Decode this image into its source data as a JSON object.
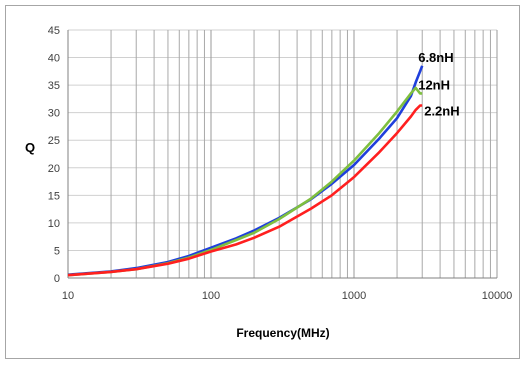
{
  "chart_data": {
    "type": "line",
    "xlabel": "Frequency(MHz)",
    "ylabel": "Q",
    "x_scale": "log",
    "xlim": [
      10,
      10000
    ],
    "ylim": [
      0,
      45
    ],
    "x_ticks": [
      "10",
      "100",
      "1000",
      "10000"
    ],
    "y_ticks": [
      "0",
      "5",
      "10",
      "15",
      "20",
      "25",
      "30",
      "35",
      "40",
      "45"
    ],
    "grid": true,
    "colors": {
      "6.8nH": "#1f3fdc",
      "12nH": "#7fbf3f",
      "2.2nH": "#ff1f1f"
    },
    "series": [
      {
        "name": "6.8nH",
        "color": "#1f3fdc",
        "x": [
          10,
          20,
          30,
          50,
          70,
          100,
          150,
          200,
          300,
          500,
          700,
          1000,
          1500,
          2000,
          2500,
          2700,
          2900,
          3000
        ],
        "y": [
          0.6,
          1.2,
          1.8,
          2.9,
          4.0,
          5.5,
          7.2,
          8.6,
          10.9,
          14.3,
          17.1,
          20.5,
          25.3,
          29.0,
          33.0,
          35.5,
          37.5,
          38.5
        ]
      },
      {
        "name": "12nH",
        "color": "#7fbf3f",
        "x": [
          10,
          20,
          30,
          50,
          70,
          100,
          150,
          200,
          300,
          500,
          700,
          1000,
          1500,
          2000,
          2500,
          2700,
          2900,
          3000
        ],
        "y": [
          0.5,
          1.1,
          1.6,
          2.7,
          3.7,
          5.1,
          6.9,
          8.2,
          10.7,
          14.4,
          17.5,
          21.3,
          26.3,
          30.2,
          33.5,
          34.5,
          33.5,
          33.5
        ]
      },
      {
        "name": "2.2nH",
        "color": "#ff1f1f",
        "x": [
          10,
          20,
          30,
          50,
          70,
          100,
          150,
          200,
          300,
          500,
          700,
          1000,
          1500,
          2000,
          2500,
          2700,
          2900,
          3000
        ],
        "y": [
          0.5,
          1.1,
          1.6,
          2.6,
          3.5,
          4.8,
          6.1,
          7.3,
          9.3,
          12.6,
          15.0,
          18.3,
          22.8,
          26.3,
          29.3,
          30.5,
          31.3,
          31.3
        ]
      }
    ]
  }
}
